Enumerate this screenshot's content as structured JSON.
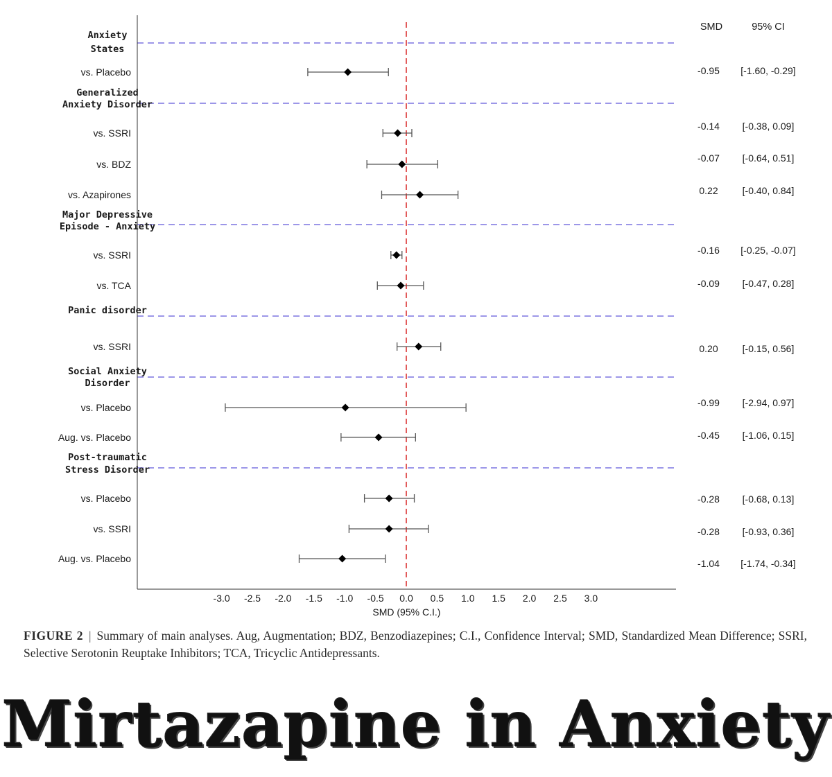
{
  "chart_data": {
    "type": "forest",
    "xlabel": "SMD (95% C.I.)",
    "x_ticks": [
      -3.0,
      -2.5,
      -2.0,
      -1.5,
      -1.0,
      -0.5,
      0.0,
      0.5,
      1.0,
      1.5,
      2.0,
      2.5,
      3.0
    ],
    "x_tick_labels": [
      "-3.0",
      "-2.5",
      "-2.0",
      "-1.5",
      "-1.0",
      "-0.5",
      "0.0",
      "0.5",
      "1.0",
      "1.5",
      "2.0",
      "2.5",
      "3.0"
    ],
    "reference_line": 0.0,
    "column_headers": {
      "smd": "SMD",
      "ci": "95% CI"
    },
    "groups": [
      {
        "name_lines": [
          "Anxiety",
          "States"
        ],
        "rows": [
          {
            "label": "vs. Placebo",
            "smd": -0.95,
            "lower": -1.6,
            "upper": -0.29,
            "smd_text": "-0.95",
            "ci_text": "[-1.60, -0.29]"
          }
        ]
      },
      {
        "name_lines": [
          "Generalized",
          "Anxiety Disorder"
        ],
        "rows": [
          {
            "label": "vs. SSRI",
            "smd": -0.14,
            "lower": -0.38,
            "upper": 0.09,
            "smd_text": "-0.14",
            "ci_text": "[-0.38, 0.09]"
          },
          {
            "label": "vs. BDZ",
            "smd": -0.07,
            "lower": -0.64,
            "upper": 0.51,
            "smd_text": "-0.07",
            "ci_text": "[-0.64, 0.51]"
          },
          {
            "label": "vs. Azapirones",
            "smd": 0.22,
            "lower": -0.4,
            "upper": 0.84,
            "smd_text": "0.22",
            "ci_text": "[-0.40, 0.84]"
          }
        ]
      },
      {
        "name_lines": [
          "Major Depressive",
          "Episode - Anxiety"
        ],
        "rows": [
          {
            "label": "vs. SSRI",
            "smd": -0.16,
            "lower": -0.25,
            "upper": -0.07,
            "smd_text": "-0.16",
            "ci_text": "[-0.25, -0.07]"
          },
          {
            "label": "vs. TCA",
            "smd": -0.09,
            "lower": -0.47,
            "upper": 0.28,
            "smd_text": "-0.09",
            "ci_text": "[-0.47, 0.28]"
          }
        ]
      },
      {
        "name_lines": [
          "Panic disorder"
        ],
        "rows": [
          {
            "label": "vs. SSRI",
            "smd": 0.2,
            "lower": -0.15,
            "upper": 0.56,
            "smd_text": "0.20",
            "ci_text": "[-0.15, 0.56]"
          }
        ]
      },
      {
        "name_lines": [
          "Social Anxiety",
          "Disorder"
        ],
        "rows": [
          {
            "label": "vs. Placebo",
            "smd": -0.99,
            "lower": -2.94,
            "upper": 0.97,
            "smd_text": "-0.99",
            "ci_text": "[-2.94, 0.97]"
          },
          {
            "label": "Aug. vs. Placebo",
            "smd": -0.45,
            "lower": -1.06,
            "upper": 0.15,
            "smd_text": "-0.45",
            "ci_text": "[-1.06, 0.15]"
          }
        ]
      },
      {
        "name_lines": [
          "Post-traumatic",
          "Stress Disorder"
        ],
        "rows": [
          {
            "label": "vs. Placebo",
            "smd": -0.28,
            "lower": -0.68,
            "upper": 0.13,
            "smd_text": "-0.28",
            "ci_text": "[-0.68, 0.13]"
          },
          {
            "label": "vs. SSRI",
            "smd": -0.28,
            "lower": -0.93,
            "upper": 0.36,
            "smd_text": "-0.28",
            "ci_text": "[-0.93, 0.36]"
          },
          {
            "label": "Aug. vs. Placebo",
            "smd": -1.04,
            "lower": -1.74,
            "upper": -0.34,
            "smd_text": "-1.04",
            "ci_text": "[-1.74, -0.34]"
          }
        ]
      }
    ],
    "colors": {
      "group_divider": "#7b74e0",
      "reference_line": "#e25b5b",
      "marker": "#000000",
      "whisker": "#555555"
    }
  },
  "caption": {
    "label": "FIGURE 2",
    "separator": "|",
    "text": "Summary of main analyses. Aug, Augmentation; BDZ, Benzodiazepines; C.I., Confidence Interval; SMD, Standardized Mean Difference; SSRI, Selective Serotonin Reuptake Inhibitors; TCA, Tricyclic Antidepressants."
  },
  "banner": {
    "text": "Mirtazapine in Anxiety"
  }
}
